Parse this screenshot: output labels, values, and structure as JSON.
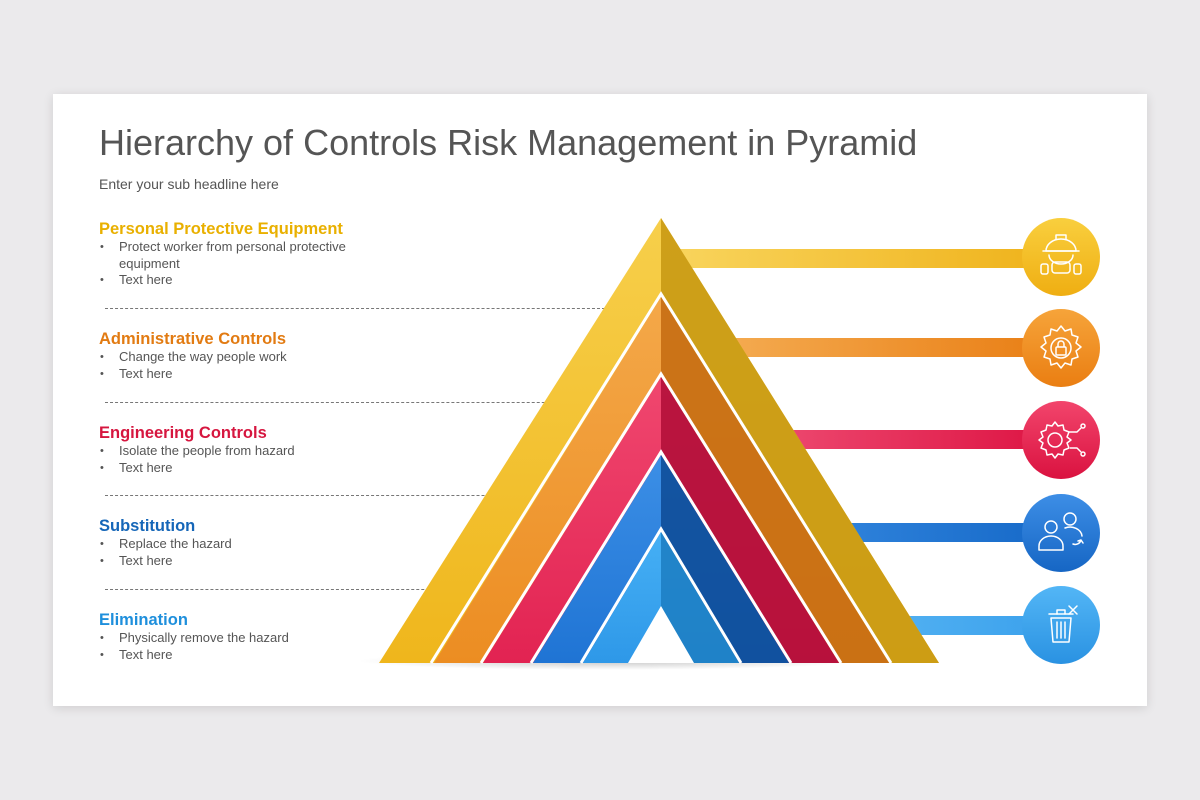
{
  "title": "Hierarchy of Controls Risk Management in Pyramid",
  "subtitle": "Enter your sub headline here",
  "levels": [
    {
      "title": "Personal Protective Equipment",
      "color": "#E9B000",
      "bullets": [
        "Protect worker from personal protective equipment",
        "Text here"
      ],
      "icon": "worker-helmet-icon"
    },
    {
      "title": "Administrative Controls",
      "color": "#E27B12",
      "bullets": [
        "Change the way people work",
        "Text here"
      ],
      "icon": "gear-lock-icon"
    },
    {
      "title": "Engineering Controls",
      "color": "#D6163F",
      "bullets": [
        "Isolate the people from hazard",
        "Text here"
      ],
      "icon": "gear-circuit-icon"
    },
    {
      "title": "Substitution",
      "color": "#1566B8",
      "bullets": [
        "Replace the hazard",
        "Text here"
      ],
      "icon": "people-swap-icon"
    },
    {
      "title": "Elimination",
      "color": "#1E8FDC",
      "bullets": [
        "Physically remove the hazard",
        "Text here"
      ],
      "icon": "trash-bin-icon"
    }
  ]
}
